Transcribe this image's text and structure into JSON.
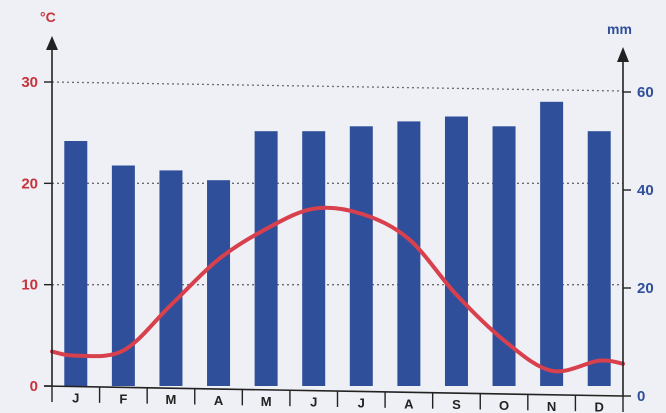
{
  "chart_data": {
    "type": "bar",
    "categories": [
      "J",
      "F",
      "M",
      "A",
      "M",
      "J",
      "J",
      "A",
      "S",
      "O",
      "N",
      "D"
    ],
    "series": [
      {
        "axis": "right",
        "type": "bar",
        "color": "#2f4f9a",
        "values": [
          50,
          45,
          44,
          42,
          52,
          52,
          53,
          54,
          55,
          53,
          58,
          52
        ]
      },
      {
        "axis": "left",
        "type": "line",
        "color": "#d8404d",
        "values": [
          3,
          3.5,
          8,
          12.5,
          15.5,
          17.5,
          17,
          14.5,
          9,
          4.5,
          1.5,
          2.5
        ]
      }
    ],
    "left_axis": {
      "unit": "°C",
      "ylim": [
        0,
        30
      ],
      "ticks": [
        0,
        10,
        20,
        30
      ],
      "color": "#c8323c"
    },
    "right_axis": {
      "unit": "mm",
      "ylim": [
        0,
        60
      ],
      "ticks": [
        0,
        20,
        40,
        60
      ],
      "color": "#2f4f9a"
    },
    "grid": "dotted",
    "line_smooth": true
  }
}
